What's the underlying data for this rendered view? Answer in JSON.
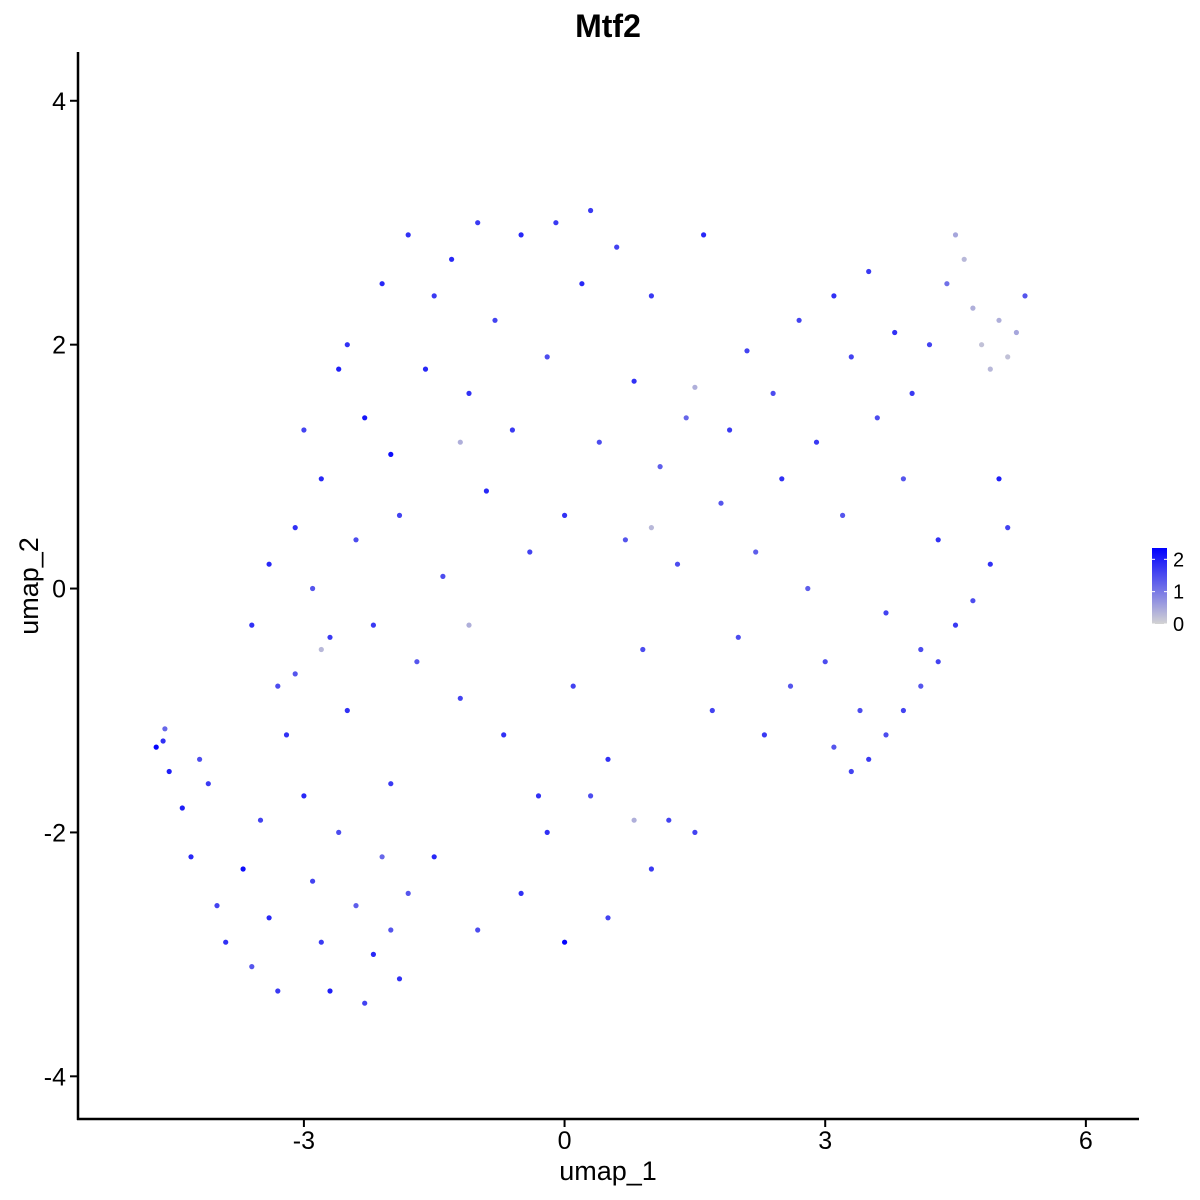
{
  "chart_data": {
    "type": "scatter",
    "title": "Mtf2",
    "xlabel": "umap_1",
    "ylabel": "umap_2",
    "xlim": [
      -5.6,
      6.6
    ],
    "ylim": [
      -4.35,
      4.4
    ],
    "x_ticks": [
      -3,
      0,
      3,
      6
    ],
    "x_tick_labels": [
      "-3",
      "0",
      "3",
      "6"
    ],
    "y_ticks": [
      -4,
      -2,
      0,
      2,
      4
    ],
    "y_tick_labels": [
      "-4",
      "-2",
      "0",
      "2",
      "4"
    ],
    "grid": false,
    "legend_position": "right",
    "color_scale": {
      "low": "#d3d3d3",
      "high": "#0000ff",
      "min": 0,
      "max": 2.35,
      "breaks": [
        0,
        1,
        2
      ],
      "break_labels": [
        "0",
        "1",
        "2"
      ]
    },
    "series": [
      {
        "description_points": "x, y, expression",
        "points": [
          [
            -4.7,
            -1.3,
            2.3
          ],
          [
            -4.62,
            -1.25,
            1.8
          ],
          [
            -4.6,
            -1.15,
            1.2
          ],
          [
            -4.55,
            -1.5,
            2.0
          ],
          [
            -4.4,
            -1.8,
            2.0
          ],
          [
            -4.2,
            -1.4,
            1.5
          ],
          [
            -4.1,
            -1.6,
            1.7
          ],
          [
            -4.3,
            -2.2,
            1.9
          ],
          [
            -4.0,
            -2.6,
            1.6
          ],
          [
            -3.9,
            -2.9,
            1.8
          ],
          [
            -3.7,
            -2.3,
            2.2
          ],
          [
            -3.6,
            -3.1,
            1.4
          ],
          [
            -3.5,
            -1.9,
            1.6
          ],
          [
            -3.4,
            -2.7,
            1.9
          ],
          [
            -3.3,
            -3.3,
            1.7
          ],
          [
            -3.2,
            -1.2,
            1.8
          ],
          [
            -3.1,
            -0.7,
            1.4
          ],
          [
            -3.0,
            -1.7,
            1.9
          ],
          [
            -2.9,
            -2.4,
            1.6
          ],
          [
            -2.8,
            -2.9,
            1.7
          ],
          [
            -2.7,
            -3.3,
            2.0
          ],
          [
            -2.6,
            -2.0,
            1.5
          ],
          [
            -2.5,
            -1.0,
            1.8
          ],
          [
            -2.4,
            -2.6,
            1.3
          ],
          [
            -2.3,
            -3.4,
            1.6
          ],
          [
            -2.2,
            -3.0,
            1.9
          ],
          [
            -2.1,
            -2.2,
            1.2
          ],
          [
            -2.0,
            -1.6,
            1.7
          ],
          [
            -1.9,
            -3.2,
            1.8
          ],
          [
            -1.8,
            -2.5,
            1.4
          ],
          [
            -3.6,
            -0.3,
            1.8
          ],
          [
            -3.4,
            0.2,
            1.9
          ],
          [
            -3.3,
            -0.8,
            1.5
          ],
          [
            -3.1,
            0.5,
            1.8
          ],
          [
            -3.0,
            1.3,
            1.6
          ],
          [
            -2.9,
            0.0,
            1.4
          ],
          [
            -2.8,
            0.9,
            1.9
          ],
          [
            -2.7,
            -0.4,
            1.7
          ],
          [
            -2.6,
            1.8,
            2.0
          ],
          [
            -2.5,
            2.0,
            1.8
          ],
          [
            -2.4,
            0.4,
            1.5
          ],
          [
            -2.3,
            1.4,
            2.1
          ],
          [
            -2.2,
            -0.3,
            1.7
          ],
          [
            -2.1,
            2.5,
            1.9
          ],
          [
            -2.0,
            1.1,
            2.2
          ],
          [
            -1.9,
            0.6,
            1.6
          ],
          [
            -1.8,
            2.9,
            1.8
          ],
          [
            -1.7,
            -0.6,
            1.4
          ],
          [
            -1.6,
            1.8,
            1.9
          ],
          [
            -1.5,
            2.4,
            1.7
          ],
          [
            -1.4,
            0.1,
            1.5
          ],
          [
            -1.3,
            2.7,
            1.9
          ],
          [
            -1.2,
            -0.9,
            1.6
          ],
          [
            -1.1,
            1.6,
            1.8
          ],
          [
            -1.0,
            3.0,
            1.7
          ],
          [
            -0.9,
            0.8,
            1.9
          ],
          [
            -0.8,
            2.2,
            1.6
          ],
          [
            -0.7,
            -1.2,
            1.8
          ],
          [
            -0.6,
            1.3,
            1.7
          ],
          [
            -0.5,
            2.9,
            1.9
          ],
          [
            -0.4,
            0.3,
            1.6
          ],
          [
            -0.3,
            -1.7,
            1.8
          ],
          [
            -0.2,
            1.9,
            1.5
          ],
          [
            -0.1,
            3.0,
            1.7
          ],
          [
            0.0,
            0.6,
            1.8
          ],
          [
            0.1,
            -0.8,
            1.6
          ],
          [
            0.2,
            2.5,
            1.9
          ],
          [
            0.3,
            3.1,
            1.7
          ],
          [
            0.4,
            1.2,
            1.5
          ],
          [
            0.5,
            -1.4,
            1.8
          ],
          [
            0.6,
            2.8,
            1.6
          ],
          [
            0.7,
            0.4,
            1.4
          ],
          [
            0.8,
            1.7,
            1.8
          ],
          [
            0.9,
            -0.5,
            1.5
          ],
          [
            1.0,
            2.4,
            1.7
          ],
          [
            1.1,
            1.0,
            1.3
          ],
          [
            1.2,
            -1.9,
            1.6
          ],
          [
            1.3,
            0.2,
            1.5
          ],
          [
            1.4,
            1.4,
            1.2
          ],
          [
            1.5,
            1.65,
            0.4
          ],
          [
            1.6,
            2.9,
            1.9
          ],
          [
            1.7,
            -1.0,
            1.6
          ],
          [
            1.8,
            0.7,
            1.4
          ],
          [
            1.9,
            1.3,
            1.7
          ],
          [
            2.0,
            -0.4,
            1.5
          ],
          [
            2.1,
            1.95,
            1.6
          ],
          [
            2.2,
            0.3,
            1.3
          ],
          [
            2.3,
            -1.2,
            1.7
          ],
          [
            2.4,
            1.6,
            1.5
          ],
          [
            2.5,
            0.9,
            1.8
          ],
          [
            2.6,
            -0.8,
            1.4
          ],
          [
            2.7,
            2.2,
            1.6
          ],
          [
            2.8,
            0.0,
            1.3
          ],
          [
            2.9,
            1.2,
            1.7
          ],
          [
            3.0,
            -0.6,
            1.5
          ],
          [
            3.1,
            2.4,
            1.8
          ],
          [
            3.2,
            0.6,
            1.4
          ],
          [
            3.3,
            1.9,
            1.6
          ],
          [
            3.4,
            -1.0,
            1.5
          ],
          [
            3.5,
            2.6,
            1.7
          ],
          [
            3.6,
            1.4,
            1.5
          ],
          [
            3.7,
            -0.2,
            1.6
          ],
          [
            3.8,
            2.1,
            1.8
          ],
          [
            3.9,
            0.9,
            1.4
          ],
          [
            4.0,
            1.6,
            1.7
          ],
          [
            4.1,
            -0.5,
            1.5
          ],
          [
            4.2,
            2.0,
            1.6
          ],
          [
            4.3,
            0.4,
            1.8
          ],
          [
            4.4,
            2.5,
            1.1
          ],
          [
            4.5,
            2.9,
            0.5
          ],
          [
            4.6,
            2.7,
            0.3
          ],
          [
            4.7,
            2.3,
            0.4
          ],
          [
            4.8,
            2.0,
            0.2
          ],
          [
            4.9,
            1.8,
            0.3
          ],
          [
            5.0,
            2.2,
            0.4
          ],
          [
            5.1,
            1.9,
            0.2
          ],
          [
            5.2,
            2.1,
            0.5
          ],
          [
            5.3,
            2.4,
            1.4
          ],
          [
            5.0,
            0.9,
            2.0
          ],
          [
            5.1,
            0.5,
            1.6
          ],
          [
            4.9,
            0.2,
            1.8
          ],
          [
            4.7,
            -0.1,
            1.5
          ],
          [
            4.5,
            -0.3,
            1.7
          ],
          [
            4.3,
            -0.6,
            1.6
          ],
          [
            4.1,
            -0.8,
            1.4
          ],
          [
            3.9,
            -1.0,
            1.6
          ],
          [
            3.7,
            -1.2,
            1.5
          ],
          [
            3.5,
            -1.4,
            1.7
          ],
          [
            3.3,
            -1.5,
            1.6
          ],
          [
            3.1,
            -1.3,
            1.4
          ],
          [
            0.8,
            -1.9,
            0.4
          ],
          [
            1.0,
            0.5,
            0.3
          ],
          [
            -1.1,
            -0.3,
            0.4
          ],
          [
            -2.8,
            -0.5,
            0.3
          ],
          [
            -1.2,
            1.2,
            0.4
          ],
          [
            0.0,
            -2.9,
            2.3
          ],
          [
            -0.5,
            -2.5,
            1.8
          ],
          [
            0.5,
            -2.7,
            1.6
          ],
          [
            1.0,
            -2.3,
            1.7
          ],
          [
            -1.0,
            -2.8,
            1.5
          ],
          [
            -1.5,
            -2.2,
            1.9
          ],
          [
            -2.0,
            -2.8,
            1.4
          ],
          [
            1.5,
            -2.0,
            1.6
          ],
          [
            -0.2,
            -2.0,
            1.8
          ],
          [
            0.3,
            -1.7,
            1.5
          ]
        ]
      }
    ]
  }
}
